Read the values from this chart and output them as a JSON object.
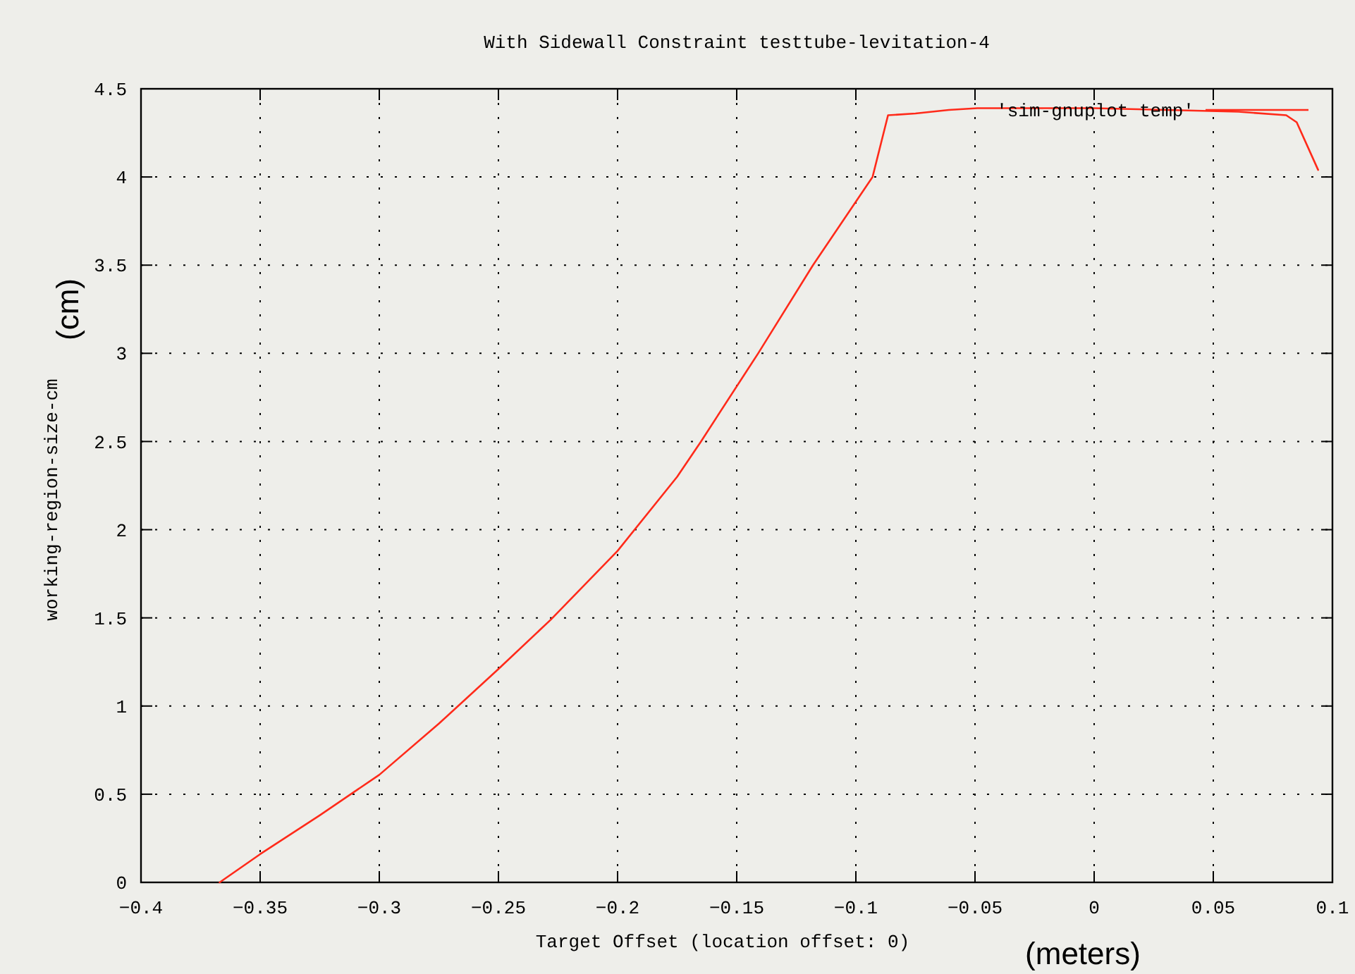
{
  "chart_data": {
    "type": "line",
    "title": "With Sidewall Constraint testtube-levitation-4",
    "xlabel": "Target Offset (location offset: 0)",
    "ylabel": "working-region-size-cm",
    "annotations": [
      "(cm)",
      "(meters)"
    ],
    "xlim": [
      -0.4,
      0.1
    ],
    "xticks": [
      -0.4,
      -0.35,
      -0.3,
      -0.25,
      -0.2,
      -0.15,
      -0.1,
      -0.05,
      0,
      0.05,
      0.1
    ],
    "ylim": [
      0,
      4.5
    ],
    "yticks": [
      0,
      0.5,
      1,
      1.5,
      2,
      2.5,
      3,
      3.5,
      4,
      4.5
    ],
    "grid": true,
    "legend": "top right",
    "marker": "none",
    "line_style": "solid",
    "series": [
      {
        "name": "'sim-gnuplot temp'",
        "color": "#ff2a1a",
        "x": [
          -0.367,
          -0.35,
          -0.325,
          -0.3,
          -0.275,
          -0.25,
          -0.228,
          -0.2,
          -0.175,
          -0.165,
          -0.141,
          -0.118,
          -0.093,
          -0.0865,
          -0.075,
          -0.061,
          -0.049,
          0,
          0.0606,
          0.0806,
          0.085,
          0.094
        ],
        "values": [
          0,
          0.16,
          0.38,
          0.61,
          0.9,
          1.21,
          1.49,
          1.88,
          2.3,
          2.5,
          3,
          3.5,
          4,
          4.35,
          4.36,
          4.38,
          4.39,
          4.39,
          4.37,
          4.35,
          4.31,
          4.04
        ]
      }
    ]
  }
}
